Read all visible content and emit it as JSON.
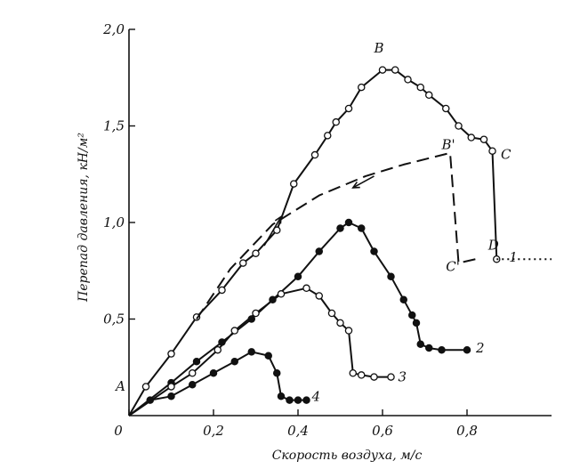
{
  "chart_data": {
    "type": "line",
    "xlabel": "Скорость воздуха, м/с",
    "ylabel": "Перепад давления, кН/м²",
    "xlim": [
      0,
      1.0
    ],
    "ylim": [
      0,
      2.0
    ],
    "x_ticks": [
      {
        "value": 0,
        "label": "0"
      },
      {
        "value": 0.2,
        "label": "0,2"
      },
      {
        "value": 0.4,
        "label": "0,4"
      },
      {
        "value": 0.6,
        "label": "0,6"
      },
      {
        "value": 0.8,
        "label": "0,8"
      }
    ],
    "y_ticks": [
      {
        "value": 0.5,
        "label": "0,5"
      },
      {
        "value": 1.0,
        "label": "1,0"
      },
      {
        "value": 1.5,
        "label": "1,5"
      },
      {
        "value": 2.0,
        "label": "2,0"
      }
    ],
    "series": [
      {
        "label": "1",
        "marker": "open",
        "style": "solid",
        "points": [
          [
            0,
            0
          ],
          [
            0.04,
            0.15
          ],
          [
            0.1,
            0.32
          ],
          [
            0.16,
            0.51
          ],
          [
            0.22,
            0.65
          ],
          [
            0.27,
            0.79
          ],
          [
            0.3,
            0.84
          ],
          [
            0.35,
            0.96
          ],
          [
            0.39,
            1.2
          ],
          [
            0.44,
            1.35
          ],
          [
            0.47,
            1.45
          ],
          [
            0.49,
            1.52
          ],
          [
            0.52,
            1.59
          ],
          [
            0.55,
            1.7
          ],
          [
            0.6,
            1.79
          ],
          [
            0.63,
            1.79
          ],
          [
            0.66,
            1.74
          ],
          [
            0.69,
            1.7
          ],
          [
            0.71,
            1.66
          ],
          [
            0.75,
            1.59
          ],
          [
            0.78,
            1.5
          ],
          [
            0.81,
            1.44
          ],
          [
            0.84,
            1.43
          ],
          [
            0.86,
            1.37
          ],
          [
            0.87,
            0.81
          ]
        ]
      },
      {
        "label": "2",
        "marker": "filled",
        "style": "solid",
        "points": [
          [
            0,
            0
          ],
          [
            0.1,
            0.17
          ],
          [
            0.16,
            0.28
          ],
          [
            0.22,
            0.38
          ],
          [
            0.29,
            0.5
          ],
          [
            0.34,
            0.6
          ],
          [
            0.4,
            0.72
          ],
          [
            0.45,
            0.85
          ],
          [
            0.5,
            0.97
          ],
          [
            0.52,
            1.0
          ],
          [
            0.55,
            0.97
          ],
          [
            0.58,
            0.85
          ],
          [
            0.62,
            0.72
          ],
          [
            0.65,
            0.6
          ],
          [
            0.67,
            0.52
          ],
          [
            0.68,
            0.48
          ],
          [
            0.69,
            0.37
          ],
          [
            0.71,
            0.35
          ],
          [
            0.74,
            0.34
          ],
          [
            0.8,
            0.34
          ]
        ]
      },
      {
        "label": "3",
        "marker": "open",
        "style": "solid",
        "points": [
          [
            0,
            0
          ],
          [
            0.1,
            0.15
          ],
          [
            0.15,
            0.22
          ],
          [
            0.21,
            0.34
          ],
          [
            0.25,
            0.44
          ],
          [
            0.3,
            0.53
          ],
          [
            0.36,
            0.63
          ],
          [
            0.42,
            0.66
          ],
          [
            0.45,
            0.62
          ],
          [
            0.48,
            0.53
          ],
          [
            0.5,
            0.48
          ],
          [
            0.52,
            0.44
          ],
          [
            0.53,
            0.22
          ],
          [
            0.55,
            0.21
          ],
          [
            0.58,
            0.2
          ],
          [
            0.62,
            0.2
          ]
        ]
      },
      {
        "label": "4",
        "marker": "filled",
        "style": "solid",
        "points": [
          [
            0,
            0
          ],
          [
            0.05,
            0.08
          ],
          [
            0.1,
            0.1
          ],
          [
            0.15,
            0.16
          ],
          [
            0.2,
            0.22
          ],
          [
            0.25,
            0.28
          ],
          [
            0.29,
            0.33
          ],
          [
            0.33,
            0.31
          ],
          [
            0.35,
            0.22
          ],
          [
            0.36,
            0.1
          ],
          [
            0.38,
            0.08
          ],
          [
            0.4,
            0.08
          ],
          [
            0.42,
            0.08
          ]
        ]
      },
      {
        "label": "",
        "marker": "none",
        "style": "dashed",
        "points": [
          [
            0.16,
            0.5
          ],
          [
            0.24,
            0.76
          ],
          [
            0.34,
            0.99
          ],
          [
            0.45,
            1.14
          ],
          [
            0.56,
            1.24
          ],
          [
            0.65,
            1.3
          ],
          [
            0.76,
            1.36
          ],
          [
            0.78,
            0.79
          ],
          [
            0.82,
            0.81
          ]
        ]
      },
      {
        "label": "",
        "marker": "none",
        "style": "dotted",
        "points": [
          [
            0.87,
            0.81
          ],
          [
            1.0,
            0.81
          ]
        ]
      }
    ],
    "annotations": [
      {
        "text": "A",
        "x": 0,
        "y": 0.13
      },
      {
        "text": "B",
        "x": 0.58,
        "y": 1.88
      },
      {
        "text": "B'",
        "x": 0.74,
        "y": 1.38
      },
      {
        "text": "C",
        "x": 0.88,
        "y": 1.33
      },
      {
        "text": "C'",
        "x": 0.75,
        "y": 0.75
      },
      {
        "text": "D",
        "x": 0.85,
        "y": 0.86
      }
    ],
    "arrows": [
      {
        "from": [
          0.32,
          0.88
        ],
        "to": [
          0.36,
          1.03
        ]
      },
      {
        "from": [
          0.58,
          1.24
        ],
        "to": [
          0.53,
          1.18
        ]
      }
    ]
  }
}
